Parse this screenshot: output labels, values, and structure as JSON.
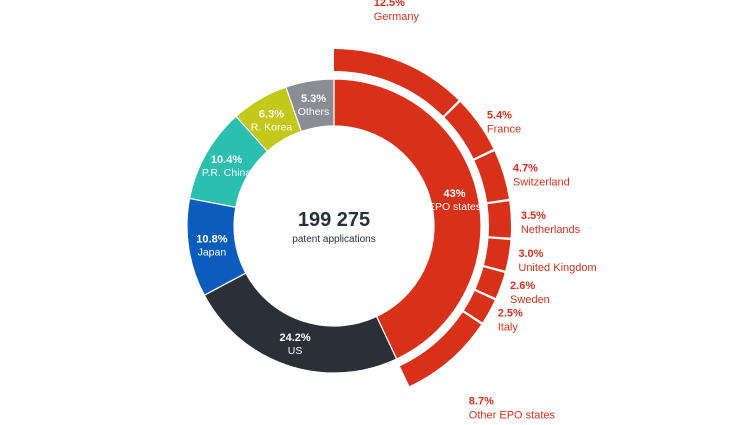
{
  "chart_data": {
    "type": "donut",
    "total": "199 275",
    "total_label": "patent applications",
    "inner_ring": [
      {
        "name": "EPO states",
        "pct_label": "43%",
        "value": 43.0,
        "color": "#d9301a",
        "text_color": "#ffffff"
      },
      {
        "name": "US",
        "pct_label": "24.2%",
        "value": 24.2,
        "color": "#2b2f38",
        "text_color": "#ffffff"
      },
      {
        "name": "Japan",
        "pct_label": "10.8%",
        "value": 10.8,
        "color": "#0b5cbd",
        "text_color": "#ffffff"
      },
      {
        "name": "P.R. China",
        "pct_label": "10.4%",
        "value": 10.4,
        "color": "#2bbfb0",
        "text_color": "#ffffff"
      },
      {
        "name": "R. Korea",
        "pct_label": "6.3%",
        "value": 6.3,
        "color": "#c3c81a",
        "text_color": "#ffffff"
      },
      {
        "name": "Others",
        "pct_label": "5.3%",
        "value": 5.3,
        "color": "#8a8d94",
        "text_color": "#ffffff"
      }
    ],
    "outer_ring": [
      {
        "name": "Germany",
        "pct_label": "12.5%",
        "value": 12.5
      },
      {
        "name": "France",
        "pct_label": "5.4%",
        "value": 5.4
      },
      {
        "name": "Switzerland",
        "pct_label": "4.7%",
        "value": 4.7
      },
      {
        "name": "Netherlands",
        "pct_label": "3.5%",
        "value": 3.5
      },
      {
        "name": "United Kingdom",
        "pct_label": "3.0%",
        "value": 3.0
      },
      {
        "name": "Sweden",
        "pct_label": "2.6%",
        "value": 2.6
      },
      {
        "name": "Italy",
        "pct_label": "2.5%",
        "value": 2.5
      },
      {
        "name": "Other EPO states",
        "pct_label": "8.7%",
        "value": 8.7
      }
    ],
    "outer_color": "#d9301a"
  }
}
